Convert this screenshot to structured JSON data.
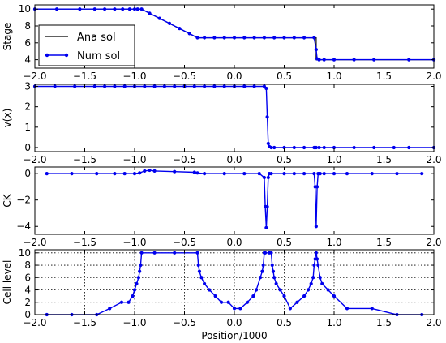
{
  "figure": {
    "xlabel": "Position/1000",
    "x_tick_labels": [
      "−2.0",
      "−1.5",
      "−1.0",
      "−0.5",
      "0.0",
      "0.5",
      "1.0",
      "1.5",
      "2.0"
    ]
  },
  "colors": {
    "num": "#0000ee",
    "ana": "#000000",
    "grid": "#000000"
  },
  "legend": {
    "placement": "lower-left",
    "entries": [
      "Ana sol",
      "Num sol"
    ]
  },
  "chart_data": [
    {
      "type": "line",
      "ylabel": "Stage",
      "xlim": [
        -2.0,
        2.0
      ],
      "ylim": [
        3,
        10.5
      ],
      "y_ticks": [
        4,
        6,
        8,
        10
      ],
      "y_tick_labels": [
        "4",
        "6",
        "8",
        "10"
      ],
      "grid": false,
      "series": [
        {
          "name": "Ana sol",
          "x": [
            -2.0,
            -0.93,
            -0.37,
            0.82,
            0.82,
            2.0
          ],
          "y": [
            10,
            10,
            6.6,
            6.6,
            4.0,
            4.0
          ]
        },
        {
          "name": "Num sol",
          "x": [
            -2.0,
            -1.78,
            -1.55,
            -1.4,
            -1.3,
            -1.2,
            -1.12,
            -1.05,
            -1.0,
            -0.97,
            -0.93,
            -0.85,
            -0.75,
            -0.65,
            -0.55,
            -0.45,
            -0.37,
            -0.3,
            -0.2,
            -0.1,
            0.0,
            0.1,
            0.2,
            0.3,
            0.4,
            0.5,
            0.6,
            0.7,
            0.8,
            0.82,
            0.83,
            0.85,
            0.9,
            1.0,
            1.2,
            1.4,
            1.75,
            2.0
          ],
          "y": [
            10,
            10,
            10,
            10,
            10,
            10,
            10,
            10,
            10,
            10,
            10,
            9.5,
            8.9,
            8.3,
            7.7,
            7.1,
            6.6,
            6.6,
            6.6,
            6.6,
            6.6,
            6.6,
            6.6,
            6.6,
            6.6,
            6.6,
            6.6,
            6.6,
            6.6,
            5.2,
            4.1,
            4.0,
            4.0,
            4.0,
            4.0,
            4.0,
            4.0,
            4.0
          ]
        }
      ]
    },
    {
      "type": "line",
      "ylabel": "v(x)",
      "xlim": [
        -2.0,
        2.0
      ],
      "ylim": [
        -0.2,
        3.1
      ],
      "y_ticks": [
        0,
        1,
        2,
        3
      ],
      "y_tick_labels": [
        "0",
        "1",
        "2",
        "3"
      ],
      "grid": false,
      "series": [
        {
          "name": "Num sol",
          "x": [
            -2.0,
            -1.8,
            -1.6,
            -1.4,
            -1.3,
            -1.2,
            -1.1,
            -1.0,
            -0.9,
            -0.8,
            -0.7,
            -0.6,
            -0.5,
            -0.4,
            -0.3,
            -0.2,
            -0.1,
            0.0,
            0.1,
            0.2,
            0.3,
            0.32,
            0.33,
            0.34,
            0.35,
            0.37,
            0.4,
            0.5,
            0.6,
            0.7,
            0.8,
            0.82,
            0.85,
            0.9,
            1.0,
            1.2,
            1.4,
            1.6,
            1.75,
            2.0
          ],
          "y": [
            3,
            3,
            3,
            3,
            3,
            3,
            3,
            3,
            3,
            3,
            3,
            3,
            3,
            3,
            3,
            3,
            3,
            3,
            3,
            3,
            3,
            2.9,
            1.5,
            0.2,
            0.05,
            0,
            0,
            0,
            0,
            0,
            0,
            0,
            0,
            0,
            0,
            0,
            0,
            0,
            0,
            0
          ]
        }
      ]
    },
    {
      "type": "line",
      "ylabel": "CK",
      "xlim": [
        -2.0,
        2.0
      ],
      "ylim": [
        -4.6,
        0.5
      ],
      "y_ticks": [
        -4,
        -2,
        0
      ],
      "y_tick_labels": [
        "−4",
        "−2",
        "0"
      ],
      "grid": false,
      "series": [
        {
          "name": "Num sol",
          "x": [
            -1.88,
            -1.63,
            -1.38,
            -1.2,
            -1.1,
            -1.0,
            -0.95,
            -0.9,
            -0.85,
            -0.8,
            -0.6,
            -0.4,
            -0.37,
            -0.3,
            -0.1,
            0.1,
            0.25,
            0.3,
            0.31,
            0.32,
            0.33,
            0.34,
            0.35,
            0.37,
            0.5,
            0.6,
            0.7,
            0.8,
            0.81,
            0.82,
            0.83,
            0.84,
            0.86,
            0.9,
            1.0,
            1.13,
            1.38,
            1.63,
            1.88
          ],
          "y": [
            0,
            0,
            0,
            0,
            0,
            0,
            0.05,
            0.2,
            0.25,
            0.2,
            0.15,
            0.1,
            0.05,
            0,
            0,
            0,
            0,
            -0.3,
            -2.5,
            -4.1,
            -2.5,
            -0.3,
            0,
            0,
            0,
            0,
            0,
            0,
            -1.0,
            -4.0,
            -1.0,
            0,
            0,
            0,
            0,
            0,
            0,
            0,
            0
          ]
        }
      ]
    },
    {
      "type": "line",
      "ylabel": "Cell level",
      "xlim": [
        -2.0,
        2.0
      ],
      "ylim": [
        0,
        10.5
      ],
      "y_ticks": [
        0,
        2,
        4,
        6,
        8,
        10
      ],
      "y_tick_labels": [
        "0",
        "2",
        "4",
        "6",
        "8",
        "10"
      ],
      "grid": true,
      "series": [
        {
          "name": "Num sol",
          "x": [
            -1.88,
            -1.63,
            -1.38,
            -1.25,
            -1.13,
            -1.06,
            -1.02,
            -1.0,
            -0.98,
            -0.96,
            -0.95,
            -0.94,
            -0.93,
            -0.8,
            -0.6,
            -0.37,
            -0.36,
            -0.35,
            -0.33,
            -0.3,
            -0.25,
            -0.19,
            -0.13,
            -0.06,
            0.0,
            0.06,
            0.13,
            0.19,
            0.22,
            0.26,
            0.28,
            0.29,
            0.3,
            0.31,
            0.35,
            0.37,
            0.38,
            0.39,
            0.4,
            0.42,
            0.46,
            0.5,
            0.56,
            0.63,
            0.7,
            0.74,
            0.77,
            0.79,
            0.8,
            0.81,
            0.82,
            0.83,
            0.84,
            0.86,
            0.88,
            0.94,
            1.0,
            1.13,
            1.38,
            1.63,
            1.88
          ],
          "y": [
            0,
            0,
            0,
            1,
            2,
            2,
            3,
            4,
            5,
            6,
            7,
            8,
            10,
            10,
            10,
            10,
            8,
            7,
            6,
            5,
            4,
            3,
            2,
            2,
            1,
            1,
            2,
            3,
            4,
            6,
            7,
            8,
            10,
            10,
            10,
            10,
            8,
            7,
            6,
            5,
            4,
            3,
            1,
            2,
            3,
            4,
            5,
            6,
            8,
            9,
            10,
            9,
            8,
            6,
            5,
            4,
            3,
            1,
            1,
            0,
            0
          ]
        }
      ]
    }
  ]
}
